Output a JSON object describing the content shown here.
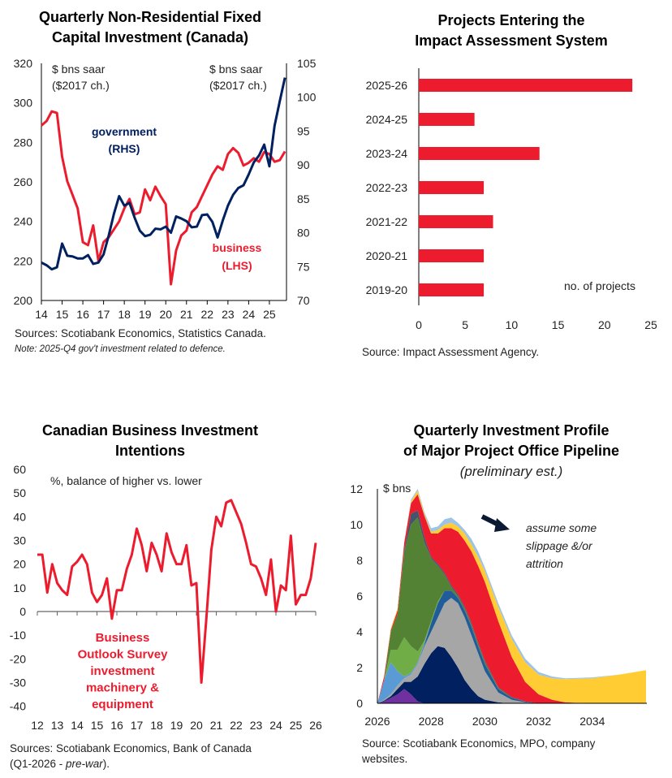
{
  "panels": {
    "p1": {
      "title_line1": "Quarterly Non-Residential Fixed",
      "title_line2": "Capital Investment (Canada)",
      "source": "Sources: Scotiabank Economics, Statistics Canada.",
      "note": "Note: 2025-Q4 gov't investment related to defence."
    },
    "p2": {
      "title_line1": "Projects Entering the",
      "title_line2": "Impact Assessment System",
      "source": "Source: Impact Assessment Agency."
    },
    "p3": {
      "title_line1": "Canadian Business Investment",
      "title_line2": "Intentions",
      "source_line1": "Sources: Scotiabank Economics, Bank of Canada",
      "source_line2_a": "(Q1-2026 - ",
      "source_line2_b": "pre-war",
      "source_line2_c": ")."
    },
    "p4": {
      "title_line1": "Quarterly Investment Profile",
      "title_line2": "of Major Project Office Pipeline",
      "subtitle": "(preliminary est.)",
      "source_line1": "Source: Scotiabank Economics, MPO, company",
      "source_line2": "websites."
    }
  },
  "chart_data": [
    {
      "type": "line",
      "title": "Quarterly Non-Residential Fixed Capital Investment (Canada)",
      "frequency": "quarterly",
      "x_start": "2014-Q1",
      "x_end": "2025-Q4",
      "xticks": [
        "14",
        "15",
        "16",
        "17",
        "18",
        "19",
        "20",
        "21",
        "22",
        "23",
        "24",
        "25"
      ],
      "y_left": {
        "label_line1": "$ bns saar",
        "label_line2": "($2017 ch.)",
        "lim": [
          200,
          320
        ],
        "ticks": [
          200,
          220,
          240,
          260,
          280,
          300,
          320
        ]
      },
      "y_right": {
        "label_line1": "$ bns saar",
        "label_line2": "($2017 ch.)",
        "lim": [
          70,
          105
        ],
        "ticks": [
          70,
          75,
          80,
          85,
          90,
          95,
          100,
          105
        ]
      },
      "series": [
        {
          "name": "business",
          "name_line2": "(LHS)",
          "axis": "left",
          "color": "#ec1c2e",
          "values": [
            288.5,
            290.8,
            295.7,
            294.9,
            272.7,
            260.3,
            253.5,
            246.6,
            229.5,
            228,
            238,
            220,
            229.5,
            232,
            236,
            240,
            246.6,
            251.4,
            243.6,
            244.6,
            256.2,
            250.7,
            257.6,
            252.8,
            248.7,
            208.2,
            225.3,
            232.9,
            235.4,
            244.6,
            247.3,
            252.8,
            258.3,
            263.8,
            267.9,
            266.1,
            274.1,
            277.1,
            274.7,
            268.3,
            269.7,
            272,
            270.2,
            275.1,
            274.1,
            270.2,
            271,
            275.4
          ]
        },
        {
          "name": "government",
          "name_line2": "(RHS)",
          "axis": "right",
          "color": "#002060",
          "values": [
            75.6,
            75.2,
            74.6,
            74.9,
            78.4,
            76.6,
            76.5,
            76.2,
            76.2,
            76.7,
            75.4,
            75.6,
            76.8,
            79.6,
            82.8,
            85.4,
            84,
            84.4,
            82.2,
            80.3,
            79.5,
            79.7,
            80.6,
            80.5,
            80.9,
            80,
            82.4,
            82.1,
            81.7,
            80.8,
            80.9,
            82.6,
            82.7,
            81.6,
            79.3,
            81.8,
            84,
            85.6,
            86.6,
            87,
            88.6,
            90.4,
            91.4,
            93,
            89.8,
            95.8,
            99.4,
            102.9
          ]
        }
      ]
    },
    {
      "type": "bar",
      "orientation": "horizontal",
      "title": "Projects Entering the Impact Assessment System",
      "categories": [
        "2025-26",
        "2024-25",
        "2023-24",
        "2022-23",
        "2021-22",
        "2020-21",
        "2019-20"
      ],
      "values": [
        23,
        6,
        13,
        7,
        8,
        7,
        7
      ],
      "xlabel": "no. of projects",
      "xlim": [
        0,
        25
      ],
      "xticks": [
        0,
        5,
        10,
        15,
        20,
        25
      ],
      "color": "#ec1c2e"
    },
    {
      "type": "line",
      "title": "Canadian Business Investment Intentions",
      "frequency": "quarterly",
      "x_start": "2012-Q1",
      "x_end": "2026-Q1",
      "xticks": [
        "12",
        "13",
        "14",
        "15",
        "16",
        "17",
        "18",
        "19",
        "20",
        "21",
        "22",
        "23",
        "24",
        "25",
        "26"
      ],
      "ylabel": "%, balance of higher vs. lower",
      "ylim": [
        -40,
        60
      ],
      "yticks": [
        -40,
        -30,
        -20,
        -10,
        0,
        10,
        20,
        30,
        40,
        50,
        60
      ],
      "series": [
        {
          "name_lines": [
            "Business",
            "Outlook Survey",
            "investment",
            "machinery &",
            "equipment"
          ],
          "color": "#ec1c2e",
          "values": [
            24,
            24,
            8,
            20,
            12,
            9,
            7,
            19,
            21,
            24,
            20,
            8,
            4,
            7,
            14,
            -3,
            9,
            9,
            18,
            24,
            35,
            28,
            17,
            29,
            24,
            17,
            33,
            25,
            20,
            20,
            28,
            11,
            12,
            -30,
            -3,
            26,
            40,
            36,
            46,
            47,
            42,
            37,
            29,
            20,
            19,
            14,
            7,
            22,
            0,
            11,
            9,
            32,
            3,
            7,
            7,
            14,
            29
          ]
        }
      ]
    },
    {
      "type": "area",
      "stacked": true,
      "values_are_cumulative_tops": true,
      "title": "Quarterly Investment Profile of Major Project Office Pipeline",
      "subtitle": "(preliminary est.)",
      "ylabel": "$ bns",
      "ylim": [
        0,
        12
      ],
      "yticks": [
        0,
        2,
        4,
        6,
        8,
        10,
        12
      ],
      "xlim": [
        2026,
        2036
      ],
      "xticks": [
        2026,
        2028,
        2030,
        2032,
        2034
      ],
      "annotation_line1": "assume some",
      "annotation_line2": "slippage &/or",
      "annotation_line3": "attrition",
      "x": [
        2026,
        2026.25,
        2026.5,
        2026.75,
        2027,
        2027.25,
        2027.5,
        2027.75,
        2028,
        2028.25,
        2028.5,
        2028.75,
        2029,
        2029.25,
        2029.5,
        2029.75,
        2030,
        2030.5,
        2031,
        2031.5,
        2032,
        2032.5,
        2033,
        2034,
        2035,
        2036
      ],
      "layers": [
        {
          "color": "#7030a0",
          "values": [
            0,
            0.1,
            0.3,
            0.5,
            0.8,
            0.5,
            0.1,
            0,
            0,
            0,
            0,
            0,
            0,
            0,
            0,
            0,
            0,
            0,
            0,
            0,
            0,
            0,
            0,
            0,
            0,
            0
          ]
        },
        {
          "color": "#002060",
          "values": [
            0,
            0.15,
            0.4,
            0.8,
            1.2,
            1.2,
            1.5,
            2.2,
            2.8,
            3.2,
            3.1,
            2.6,
            2.0,
            1.3,
            0.8,
            0.4,
            0.2,
            0.05,
            0,
            0,
            0,
            0,
            0,
            0,
            0,
            0
          ]
        },
        {
          "color": "#a6a6a6",
          "values": [
            0,
            0.2,
            0.5,
            1.0,
            1.4,
            1.6,
            2.2,
            3.2,
            4.0,
            4.8,
            5.6,
            5.9,
            5.6,
            4.8,
            3.8,
            2.8,
            1.8,
            0.6,
            0.2,
            0.05,
            0,
            0,
            0,
            0,
            0,
            0
          ]
        },
        {
          "color": "#1f5c99",
          "values": [
            0,
            0.2,
            0.5,
            1.0,
            1.4,
            1.6,
            2.2,
            3.3,
            4.5,
            5.6,
            6.3,
            6.3,
            5.9,
            5.2,
            4.3,
            3.2,
            2.2,
            0.8,
            0.3,
            0.1,
            0,
            0,
            0,
            0,
            0,
            0
          ]
        },
        {
          "color": "#5b9bd5",
          "values": [
            0,
            1.3,
            2.3,
            1.8,
            1.5,
            1.7,
            2.3,
            3.4,
            4.5,
            5.6,
            6.3,
            6.3,
            5.9,
            5.2,
            4.3,
            3.2,
            2.2,
            0.8,
            0.3,
            0.1,
            0,
            0,
            0,
            0,
            0,
            0
          ]
        },
        {
          "color": "#70ad47",
          "values": [
            0,
            1.3,
            3.0,
            3.0,
            3.7,
            3.2,
            2.9,
            3.5,
            4.6,
            5.7,
            6.3,
            6.3,
            5.9,
            5.2,
            4.3,
            3.2,
            2.2,
            0.8,
            0.3,
            0.1,
            0,
            0,
            0,
            0,
            0,
            0
          ]
        },
        {
          "color": "#548235",
          "values": [
            0,
            1.3,
            4.0,
            5.0,
            8.5,
            10.0,
            10.4,
            9.0,
            8.1,
            7.7,
            7.2,
            6.5,
            6.0,
            5.3,
            4.4,
            3.3,
            2.3,
            0.85,
            0.3,
            0.1,
            0,
            0,
            0,
            0,
            0,
            0
          ]
        },
        {
          "color": "#44546a",
          "values": [
            0,
            1.3,
            4.0,
            5.0,
            8.6,
            10.6,
            10.8,
            9.3,
            8.2,
            7.8,
            7.3,
            6.6,
            6.1,
            5.4,
            4.5,
            3.4,
            2.4,
            0.9,
            0.35,
            0.1,
            0,
            0,
            0,
            0,
            0,
            0
          ]
        },
        {
          "color": "#ec1c2e",
          "values": [
            0,
            1.5,
            4.1,
            5.2,
            9.0,
            11.2,
            11.7,
            10.5,
            9.5,
            9.5,
            9.8,
            9.8,
            9.6,
            9.1,
            8.5,
            7.7,
            6.8,
            4.6,
            2.6,
            1.2,
            0.5,
            0.2,
            0.05,
            0,
            0,
            0
          ]
        },
        {
          "color": "#ffcc33",
          "values": [
            0,
            1.5,
            4.2,
            5.3,
            9.0,
            11.3,
            11.9,
            10.6,
            9.6,
            9.7,
            10.0,
            10.1,
            9.9,
            9.5,
            8.9,
            8.2,
            7.4,
            5.4,
            3.6,
            2.3,
            1.6,
            1.4,
            1.35,
            1.4,
            1.6,
            1.85
          ]
        },
        {
          "color": "#9dc3e6",
          "values": [
            0,
            1.5,
            4.2,
            5.3,
            9.0,
            11.4,
            12.0,
            10.7,
            9.8,
            9.9,
            10.3,
            10.4,
            10.1,
            9.7,
            9.2,
            8.5,
            7.6,
            5.6,
            3.8,
            2.5,
            1.75,
            1.5,
            1.4,
            1.45,
            1.6,
            1.85
          ]
        }
      ]
    }
  ]
}
